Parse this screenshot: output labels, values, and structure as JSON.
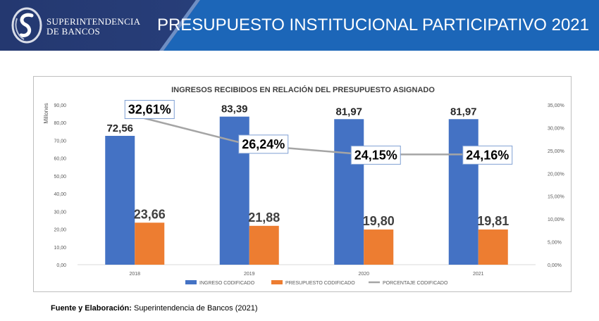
{
  "header": {
    "brand_line1": "SUPERINTENDENCIA",
    "brand_line2": "DE BANCOS",
    "title": "PRESUPUESTO INSTITUCIONAL PARTICIPATIVO 2021",
    "bg_color": "#2a3f7a",
    "accent_color": "#1b62b5"
  },
  "chart_data": {
    "type": "bar",
    "title": "INGRESOS RECIBIDOS EN RELACIÓN DEL PRESUPUESTO ASIGNADO",
    "ylabel": "Millones",
    "categories": [
      "2018",
      "2019",
      "2020",
      "2021"
    ],
    "ylim": [
      0,
      90
    ],
    "y_ticks": [
      "0,00",
      "10,00",
      "20,00",
      "30,00",
      "40,00",
      "50,00",
      "60,00",
      "70,00",
      "80,00",
      "90,00"
    ],
    "y2lim": [
      0,
      35
    ],
    "y2_ticks": [
      "0,00%",
      "5,00%",
      "10,00%",
      "15,00%",
      "20,00%",
      "25,00%",
      "30,00%",
      "35,00%"
    ],
    "series": [
      {
        "name": "INGRESO CODIFICADO",
        "type": "bar",
        "color": "#4472c4",
        "values": [
          72.56,
          83.39,
          81.97,
          81.97
        ],
        "labels": [
          "72,56",
          "83,39",
          "81,97",
          "81,97"
        ]
      },
      {
        "name": "PRESUPUESTO CODIFICADO",
        "type": "bar",
        "color": "#ed7d31",
        "values": [
          23.66,
          21.88,
          19.8,
          19.81
        ],
        "labels": [
          "23,66",
          "21,88",
          "19,80",
          "19,81"
        ]
      },
      {
        "name": "PORCENTAJE CODIFICADO",
        "type": "line",
        "axis": "right",
        "color": "#a5a5a5",
        "values": [
          32.61,
          26.24,
          24.15,
          24.16
        ],
        "labels": [
          "32,61%",
          "26,24%",
          "24,15%",
          "24,16%"
        ]
      }
    ],
    "legend_position": "bottom"
  },
  "source": {
    "label": "Fuente y Elaboración:",
    "text": " Superintendencia de Bancos (2021)"
  }
}
